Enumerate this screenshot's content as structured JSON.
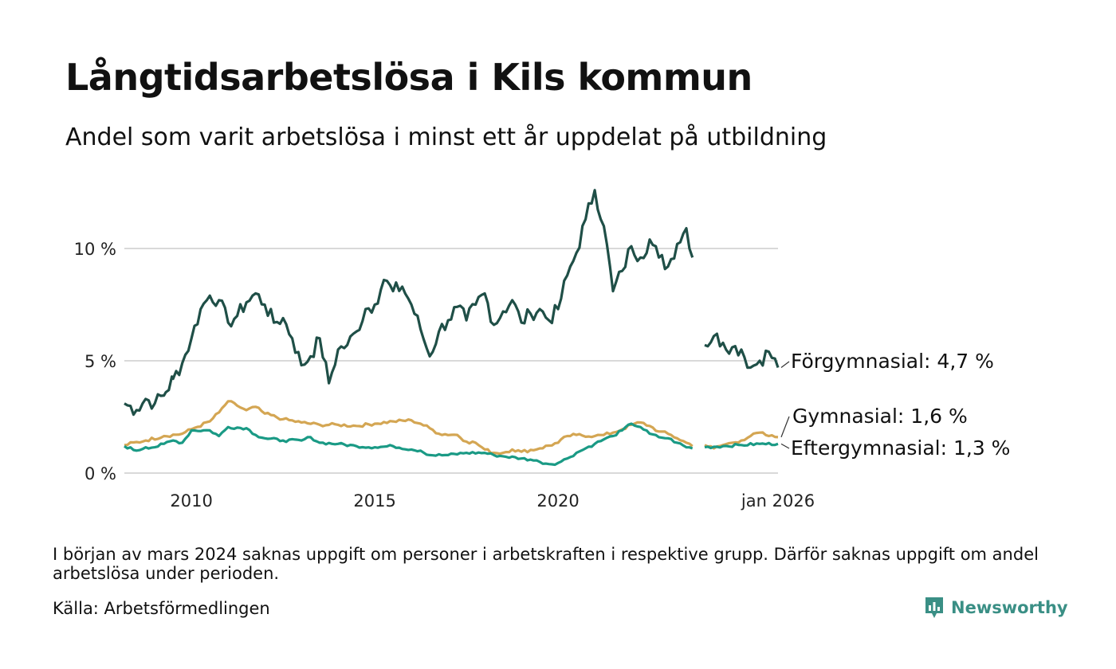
{
  "header": {
    "title": "Långtidsarbetslösa i Kils kommun",
    "subtitle": "Andel som varit arbetslösa i minst ett år uppdelat på utbildning"
  },
  "footer": {
    "note": "I början av mars 2024 saknas uppgift om personer i arbetskraften i respektive grupp. Därför saknas uppgift om andel arbetslösa under perioden.",
    "source": "Källa: Arbetsförmedlingen",
    "brand": "Newsworthy",
    "brand_icon": "newsworthy-logo-icon"
  },
  "colors": {
    "forgymnasial": "#1f4f47",
    "gymnasial": "#d4a653",
    "eftergymnasial": "#1a9a85",
    "grid": "#d9d9d9",
    "brand": "#3a8f85"
  },
  "chart_data": {
    "type": "line",
    "x_start": 2008.17,
    "x_step_years": 0.0833,
    "gap": {
      "from": 2023.75,
      "to": 2024.0
    },
    "ylim": [
      0,
      13
    ],
    "y_ticks": [
      {
        "value": 0,
        "label": "0 %"
      },
      {
        "value": 5,
        "label": "5 %"
      },
      {
        "value": 10,
        "label": "10 %"
      }
    ],
    "x_ticks": [
      {
        "value": 2010,
        "label": "2010"
      },
      {
        "value": 2015,
        "label": "2015"
      },
      {
        "value": 2020,
        "label": "2020"
      },
      {
        "value": 2026,
        "label": "jan 2026"
      }
    ],
    "series": [
      {
        "name": "Förgymnasial",
        "end_label": "Förgymnasial: 4,7 %",
        "color": "#1f4f47",
        "anchors": [
          [
            2008.17,
            3.1
          ],
          [
            2008.5,
            2.8
          ],
          [
            2008.75,
            3.3
          ],
          [
            2009.0,
            3.1
          ],
          [
            2009.3,
            3.6
          ],
          [
            2009.5,
            4.2
          ],
          [
            2009.75,
            4.9
          ],
          [
            2010.0,
            6.0
          ],
          [
            2010.25,
            7.3
          ],
          [
            2010.5,
            7.9
          ],
          [
            2010.75,
            7.7
          ],
          [
            2011.0,
            6.7
          ],
          [
            2011.25,
            7.0
          ],
          [
            2011.5,
            7.6
          ],
          [
            2011.75,
            8.0
          ],
          [
            2012.0,
            7.5
          ],
          [
            2012.25,
            6.7
          ],
          [
            2012.5,
            6.9
          ],
          [
            2012.75,
            6.0
          ],
          [
            2013.0,
            4.8
          ],
          [
            2013.25,
            5.2
          ],
          [
            2013.5,
            6.0
          ],
          [
            2013.75,
            4.0
          ],
          [
            2014.0,
            5.5
          ],
          [
            2014.25,
            5.7
          ],
          [
            2014.5,
            6.3
          ],
          [
            2014.75,
            7.3
          ],
          [
            2015.0,
            7.5
          ],
          [
            2015.25,
            8.6
          ],
          [
            2015.5,
            8.1
          ],
          [
            2015.75,
            8.3
          ],
          [
            2016.0,
            7.5
          ],
          [
            2016.25,
            6.4
          ],
          [
            2016.5,
            5.2
          ],
          [
            2016.75,
            6.3
          ],
          [
            2017.0,
            6.8
          ],
          [
            2017.25,
            7.4
          ],
          [
            2017.5,
            6.8
          ],
          [
            2017.75,
            7.5
          ],
          [
            2018.0,
            8.0
          ],
          [
            2018.25,
            6.6
          ],
          [
            2018.5,
            7.2
          ],
          [
            2018.75,
            7.7
          ],
          [
            2019.0,
            6.7
          ],
          [
            2019.25,
            7.1
          ],
          [
            2019.5,
            7.3
          ],
          [
            2019.75,
            6.8
          ],
          [
            2020.0,
            7.3
          ],
          [
            2020.25,
            8.8
          ],
          [
            2020.5,
            9.8
          ],
          [
            2020.75,
            11.3
          ],
          [
            2021.0,
            12.6
          ],
          [
            2021.25,
            11.0
          ],
          [
            2021.5,
            8.1
          ],
          [
            2021.75,
            9.0
          ],
          [
            2022.0,
            10.1
          ],
          [
            2022.25,
            9.6
          ],
          [
            2022.5,
            10.4
          ],
          [
            2022.75,
            9.6
          ],
          [
            2023.0,
            9.2
          ],
          [
            2023.25,
            10.2
          ],
          [
            2023.5,
            10.9
          ],
          [
            2023.75,
            9.1
          ],
          [
            2024.0,
            5.7
          ],
          [
            2024.25,
            6.1
          ],
          [
            2024.5,
            5.8
          ],
          [
            2024.75,
            5.6
          ],
          [
            2025.0,
            5.5
          ],
          [
            2025.25,
            4.7
          ],
          [
            2025.5,
            5.0
          ],
          [
            2025.75,
            5.4
          ],
          [
            2026.0,
            4.7
          ]
        ]
      },
      {
        "name": "Gymnasial",
        "end_label": "Gymnasial: 1,6 %",
        "color": "#d4a653",
        "anchors": [
          [
            2008.17,
            1.25
          ],
          [
            2008.75,
            1.45
          ],
          [
            2009.25,
            1.65
          ],
          [
            2009.75,
            1.75
          ],
          [
            2010.0,
            1.95
          ],
          [
            2010.5,
            2.3
          ],
          [
            2010.75,
            2.7
          ],
          [
            2011.0,
            3.2
          ],
          [
            2011.25,
            3.0
          ],
          [
            2011.5,
            2.8
          ],
          [
            2011.75,
            2.95
          ],
          [
            2012.0,
            2.65
          ],
          [
            2012.5,
            2.4
          ],
          [
            2013.0,
            2.25
          ],
          [
            2013.5,
            2.15
          ],
          [
            2014.0,
            2.15
          ],
          [
            2014.5,
            2.1
          ],
          [
            2015.0,
            2.2
          ],
          [
            2015.5,
            2.3
          ],
          [
            2016.0,
            2.35
          ],
          [
            2016.25,
            2.2
          ],
          [
            2016.5,
            2.0
          ],
          [
            2016.75,
            1.75
          ],
          [
            2017.25,
            1.7
          ],
          [
            2017.5,
            1.4
          ],
          [
            2017.75,
            1.35
          ],
          [
            2018.0,
            1.05
          ],
          [
            2018.25,
            0.9
          ],
          [
            2018.5,
            0.9
          ],
          [
            2018.75,
            1.05
          ],
          [
            2019.0,
            0.95
          ],
          [
            2019.5,
            1.1
          ],
          [
            2020.0,
            1.35
          ],
          [
            2020.25,
            1.65
          ],
          [
            2020.5,
            1.7
          ],
          [
            2021.0,
            1.65
          ],
          [
            2021.25,
            1.7
          ],
          [
            2021.5,
            1.8
          ],
          [
            2021.75,
            1.95
          ],
          [
            2022.0,
            2.15
          ],
          [
            2022.25,
            2.25
          ],
          [
            2022.5,
            2.1
          ],
          [
            2022.75,
            1.85
          ],
          [
            2023.0,
            1.75
          ],
          [
            2023.25,
            1.55
          ],
          [
            2023.5,
            1.35
          ],
          [
            2023.75,
            1.2
          ],
          [
            2024.0,
            1.25
          ],
          [
            2024.25,
            1.1
          ],
          [
            2024.5,
            1.25
          ],
          [
            2024.75,
            1.35
          ],
          [
            2025.0,
            1.45
          ],
          [
            2025.25,
            1.65
          ],
          [
            2025.5,
            1.8
          ],
          [
            2025.75,
            1.65
          ],
          [
            2026.0,
            1.6
          ]
        ]
      },
      {
        "name": "Eftergymnasial",
        "end_label": "Eftergymnasial: 1,3 %",
        "color": "#1a9a85",
        "anchors": [
          [
            2008.17,
            1.2
          ],
          [
            2008.5,
            1.0
          ],
          [
            2008.75,
            1.15
          ],
          [
            2009.0,
            1.15
          ],
          [
            2009.25,
            1.3
          ],
          [
            2009.5,
            1.45
          ],
          [
            2009.75,
            1.35
          ],
          [
            2010.0,
            1.9
          ],
          [
            2010.5,
            1.9
          ],
          [
            2010.75,
            1.65
          ],
          [
            2011.0,
            2.05
          ],
          [
            2011.5,
            2.0
          ],
          [
            2011.75,
            1.7
          ],
          [
            2012.0,
            1.55
          ],
          [
            2012.5,
            1.45
          ],
          [
            2013.0,
            1.45
          ],
          [
            2013.25,
            1.6
          ],
          [
            2013.5,
            1.35
          ],
          [
            2014.0,
            1.3
          ],
          [
            2014.5,
            1.2
          ],
          [
            2015.0,
            1.15
          ],
          [
            2015.5,
            1.2
          ],
          [
            2016.0,
            1.05
          ],
          [
            2016.25,
            1.0
          ],
          [
            2016.5,
            0.8
          ],
          [
            2017.0,
            0.8
          ],
          [
            2017.5,
            0.9
          ],
          [
            2018.0,
            0.9
          ],
          [
            2018.25,
            0.8
          ],
          [
            2018.5,
            0.75
          ],
          [
            2019.0,
            0.65
          ],
          [
            2019.25,
            0.6
          ],
          [
            2019.5,
            0.5
          ],
          [
            2019.75,
            0.4
          ],
          [
            2020.0,
            0.45
          ],
          [
            2020.25,
            0.65
          ],
          [
            2020.5,
            0.9
          ],
          [
            2020.75,
            1.1
          ],
          [
            2021.0,
            1.3
          ],
          [
            2021.25,
            1.5
          ],
          [
            2021.5,
            1.65
          ],
          [
            2021.75,
            1.9
          ],
          [
            2022.0,
            2.2
          ],
          [
            2022.25,
            2.05
          ],
          [
            2022.5,
            1.75
          ],
          [
            2022.75,
            1.6
          ],
          [
            2023.0,
            1.55
          ],
          [
            2023.25,
            1.35
          ],
          [
            2023.5,
            1.15
          ],
          [
            2023.75,
            1.1
          ],
          [
            2024.0,
            1.15
          ],
          [
            2024.5,
            1.2
          ],
          [
            2025.0,
            1.25
          ],
          [
            2025.5,
            1.3
          ],
          [
            2026.0,
            1.3
          ]
        ]
      }
    ]
  }
}
